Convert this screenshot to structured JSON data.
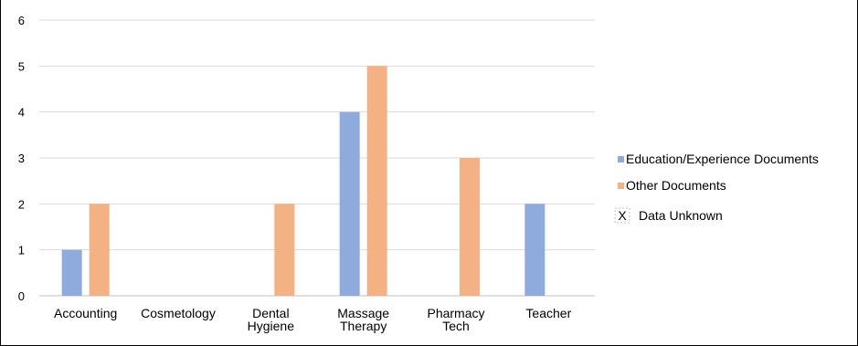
{
  "chart_data": {
    "type": "bar",
    "categories": [
      [
        "Accounting"
      ],
      [
        "Cosmetology"
      ],
      [
        "Dental",
        "Hygiene"
      ],
      [
        "Massage",
        "Therapy"
      ],
      [
        "Pharmacy",
        "Tech"
      ],
      [
        "Teacher"
      ]
    ],
    "series": [
      {
        "name": "Education/Experience Documents",
        "color": "#8faadc",
        "values": [
          1,
          null,
          null,
          4,
          null,
          2
        ]
      },
      {
        "name": "Other Documents",
        "color": "#f4b183",
        "values": [
          2,
          null,
          2,
          5,
          3,
          null
        ]
      }
    ],
    "unknown_label": "Data Unknown",
    "unknown_marker": "X",
    "yticks": [
      0,
      1,
      2,
      3,
      4,
      5,
      6
    ],
    "ylim": [
      0,
      6
    ],
    "grid": true,
    "legend_position": "right"
  }
}
